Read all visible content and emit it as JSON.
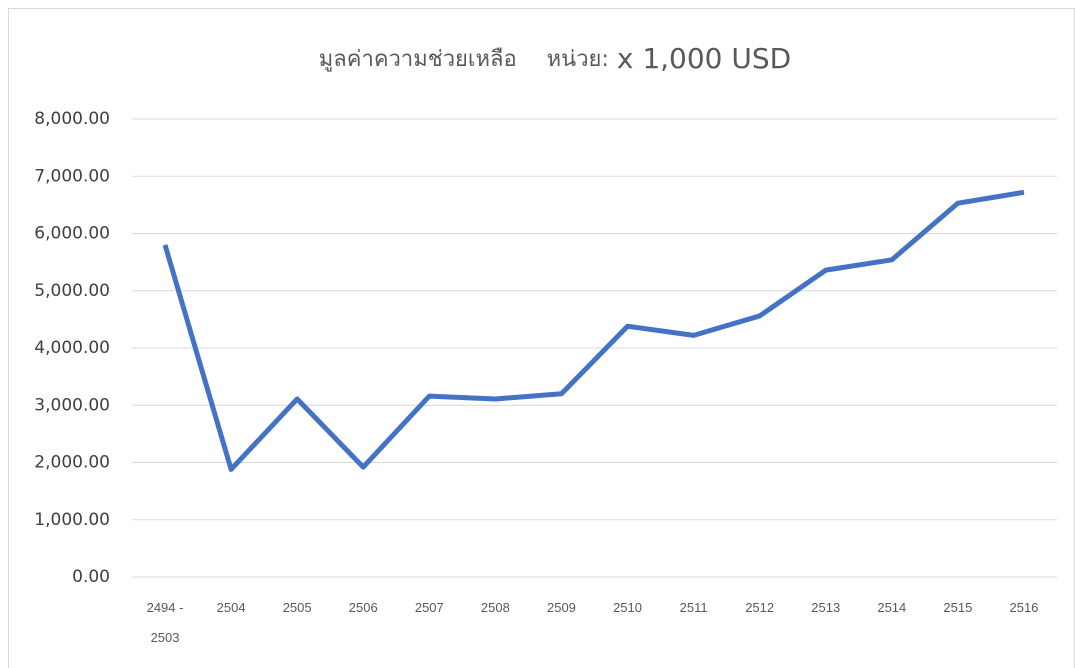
{
  "chart_data": {
    "type": "line",
    "title": "มูลค่าความช่วยเหลือ",
    "unit_prefix": "หน่วย:",
    "unit": "x 1,000 USD",
    "categories": [
      "2494 - 2503",
      "2504",
      "2505",
      "2506",
      "2507",
      "2508",
      "2509",
      "2510",
      "2511",
      "2512",
      "2513",
      "2514",
      "2515",
      "2516"
    ],
    "series": [
      {
        "name": "มูลค่าความช่วยเหลือ",
        "color": "#4472c4",
        "values": [
          5800,
          1880,
          3110,
          1920,
          3160,
          3110,
          3200,
          4380,
          4220,
          4560,
          5360,
          5540,
          6530,
          6720
        ]
      }
    ],
    "ylim": [
      0,
      8000
    ],
    "yticks": [
      {
        "value": 0,
        "label": "0.00"
      },
      {
        "value": 1000,
        "label": "1,000.00"
      },
      {
        "value": 2000,
        "label": "2,000.00"
      },
      {
        "value": 3000,
        "label": "3,000.00"
      },
      {
        "value": 4000,
        "label": "4,000.00"
      },
      {
        "value": 5000,
        "label": "5,000.00"
      },
      {
        "value": 6000,
        "label": "6,000.00"
      },
      {
        "value": 7000,
        "label": "7,000.00"
      },
      {
        "value": 8000,
        "label": "8,000.00"
      }
    ],
    "grid": true
  }
}
